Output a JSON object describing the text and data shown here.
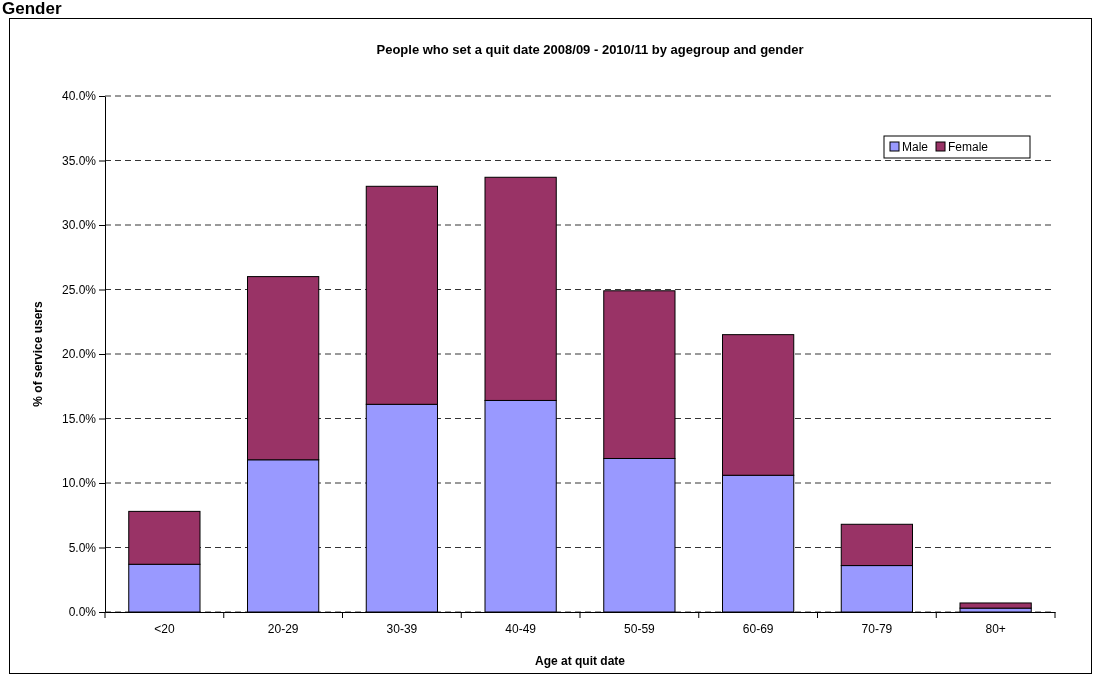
{
  "chart_data": {
    "type": "bar",
    "title": "People who set a quit date 2008/09 - 2010/11 by agegroup and gender",
    "xlabel": "Age at quit date",
    "ylabel": "% of service users",
    "annotations": [
      "Gender"
    ],
    "categories": [
      "<20",
      "20-29",
      "30-39",
      "40-49",
      "50-59",
      "60-69",
      "70-79",
      "80+"
    ],
    "series": [
      {
        "name": "Male",
        "color": "#9999ff",
        "values": [
          3.7,
          11.8,
          16.1,
          16.4,
          11.9,
          10.6,
          3.6,
          0.3
        ]
      },
      {
        "name": "Female",
        "color": "#993366",
        "values": [
          4.1,
          14.2,
          16.9,
          17.3,
          13.0,
          10.9,
          3.2,
          0.4
        ]
      }
    ],
    "stacked": true,
    "ylim": [
      0,
      40
    ],
    "yticks": [
      {
        "value": 0,
        "label": "0.0%"
      },
      {
        "value": 5,
        "label": "5.0%"
      },
      {
        "value": 10,
        "label": "10.0%"
      },
      {
        "value": 15,
        "label": "15.0%"
      },
      {
        "value": 20,
        "label": "20.0%"
      },
      {
        "value": 25,
        "label": "25.0%"
      },
      {
        "value": 30,
        "label": "30.0%"
      },
      {
        "value": 35,
        "label": "35.0%"
      },
      {
        "value": 40,
        "label": "40.0%"
      }
    ],
    "grid": "y",
    "legend": "top right"
  }
}
